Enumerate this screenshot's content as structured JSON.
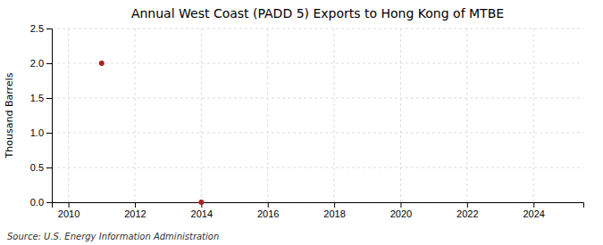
{
  "chart_data": {
    "type": "scatter",
    "title": "Annual West Coast (PADD 5) Exports to Hong Kong of MTBE",
    "ylabel": "Thousand Barrels",
    "annotations": [
      "Source: U.S. Energy Information Administration"
    ],
    "x": [
      2011,
      2014
    ],
    "values": [
      2.0,
      0.0
    ],
    "color": "#aa2222",
    "xlim": [
      2009.5,
      2025.5
    ],
    "xticks": [
      2010,
      2012,
      2014,
      2016,
      2018,
      2020,
      2022,
      2024
    ],
    "ylim": [
      0,
      2.5
    ],
    "yticks": [
      {
        "value": 0.0,
        "label": "0.0"
      },
      0.5,
      {
        "value": 1.0,
        "label": "1.0"
      },
      1.5,
      {
        "value": 2.0,
        "label": "2.0"
      },
      2.5
    ],
    "grid": true
  }
}
